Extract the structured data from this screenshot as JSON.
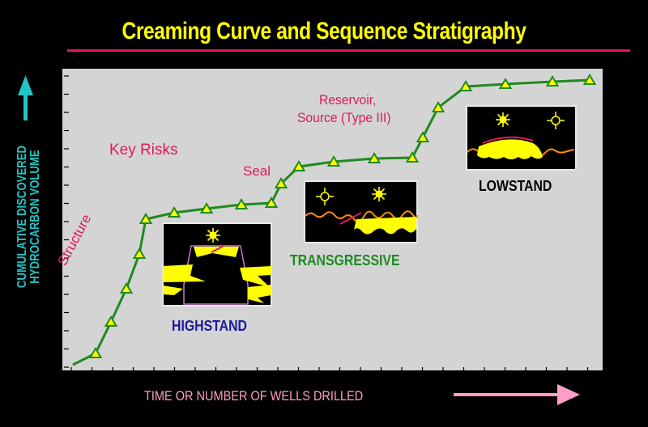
{
  "title": "Creaming Curve and Sequence Stratigraphy",
  "axes": {
    "y_label_line1": "CUMULATIVE DISCOVERED",
    "y_label_line2": "HYDROCARBON VOLUME",
    "x_label": "TIME OR  NUMBER OF WELLS DRILLED"
  },
  "risks": {
    "structure": "Structure",
    "key_risks": "Key Risks",
    "seal": "Seal",
    "reservoir_line1": "Reservoir,",
    "reservoir_line2": "Source (Type III)"
  },
  "stages": {
    "highstand": "HIGHSTAND",
    "transgressive": "TRANSGRESSIVE",
    "lowstand": "LOWSTAND"
  },
  "colors": {
    "background": "#000000",
    "panel": "#d4d4d4",
    "title": "#ffff00",
    "accent_red": "#e0195c",
    "curve": "#1f8a1f",
    "marker_fill": "#ffff00",
    "axis_label": "#22c4c4",
    "x_label": "#ff9ec7",
    "highstand": "#1a1a9e",
    "transgressive": "#1f8a1f",
    "lowstand": "#000000",
    "sun": "#ffff00",
    "sediment": "#ffff00",
    "wave": "#ff8c00"
  }
}
